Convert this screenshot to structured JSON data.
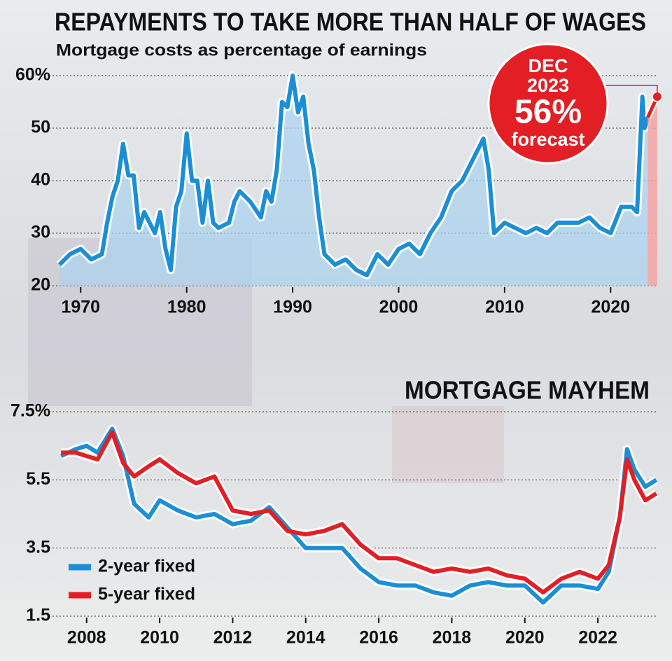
{
  "chart_data": [
    {
      "type": "line",
      "title": "REPAYMENTS TO TAKE MORE THAN HALF OF WAGES",
      "subtitle": "Mortgage costs as percentage of earnings",
      "x": [
        1968,
        1969,
        1970,
        1971,
        1972,
        1972.5,
        1973,
        1973.5,
        1974,
        1974.5,
        1975,
        1975.5,
        1976,
        1977,
        1977.5,
        1978,
        1978.5,
        1979,
        1979.5,
        1980,
        1980.5,
        1981,
        1981.5,
        1982,
        1982.5,
        1983,
        1984,
        1984.5,
        1985,
        1986,
        1987,
        1987.5,
        1988,
        1988.5,
        1989,
        1989.5,
        1990,
        1990.5,
        1991,
        1991.5,
        1992,
        1992.5,
        1993,
        1994,
        1995,
        1996,
        1997,
        1998,
        1999,
        2000,
        2001,
        2002,
        2003,
        2004,
        2005,
        2006,
        2007,
        2008,
        2008.5,
        2009,
        2010,
        2011,
        2012,
        2013,
        2014,
        2015,
        2016,
        2017,
        2018,
        2019,
        2020,
        2021,
        2022,
        2022.5,
        2023,
        2023.2,
        2023.5
      ],
      "series": [
        {
          "color": "#1b8fd6",
          "values": [
            24,
            26,
            27,
            25,
            26,
            32,
            37,
            40,
            47,
            41,
            41,
            31,
            34,
            30,
            34,
            27,
            23,
            35,
            38,
            49,
            40,
            40,
            32,
            40,
            32,
            31,
            32,
            36,
            38,
            36,
            33,
            38,
            36,
            42,
            55,
            54,
            60,
            53,
            56,
            47,
            42,
            33,
            26,
            24,
            25,
            23,
            22,
            26,
            24,
            27,
            28,
            26,
            30,
            33,
            38,
            40,
            44,
            48,
            42,
            30,
            32,
            31,
            30,
            31,
            30,
            32,
            32,
            32,
            33,
            31,
            30,
            35,
            35,
            34,
            56,
            50,
            52
          ]
        }
      ],
      "forecast": {
        "x": [
          2023.5,
          2024.4
        ],
        "values": [
          52,
          56
        ],
        "color": "#e31e24"
      },
      "annotation": [
        "DEC",
        "2023",
        "56%",
        "forecast"
      ],
      "xlim": [
        1968,
        2025
      ],
      "ylim": [
        20,
        60
      ],
      "xticks": [
        1970,
        1980,
        1990,
        2000,
        2010,
        2020
      ],
      "yticks": [
        {
          "value": 60,
          "label": "60%"
        },
        50,
        40,
        30,
        20
      ],
      "grid": true
    },
    {
      "type": "line",
      "title": "MORTGAGE MAYHEM",
      "x": [
        2007.3,
        2007.7,
        2008,
        2008.3,
        2008.7,
        2009,
        2009.3,
        2009.7,
        2010,
        2010.5,
        2011,
        2011.5,
        2012,
        2012.5,
        2013,
        2013.5,
        2014,
        2014.5,
        2015,
        2015.5,
        2016,
        2016.5,
        2017,
        2017.5,
        2018,
        2018.5,
        2019,
        2019.5,
        2020,
        2020.5,
        2021,
        2021.5,
        2022,
        2022.3,
        2022.6,
        2022.8,
        2023,
        2023.3,
        2023.6
      ],
      "series": [
        {
          "name": "2-year fixed",
          "color": "#1b8fd6",
          "values": [
            6.2,
            6.4,
            6.5,
            6.3,
            7.0,
            6.2,
            4.8,
            4.4,
            4.9,
            4.6,
            4.4,
            4.5,
            4.2,
            4.3,
            4.7,
            4.1,
            3.5,
            3.5,
            3.5,
            2.9,
            2.5,
            2.4,
            2.4,
            2.2,
            2.1,
            2.4,
            2.5,
            2.4,
            2.4,
            1.9,
            2.4,
            2.4,
            2.3,
            2.8,
            4.4,
            6.4,
            5.8,
            5.3,
            5.5
          ]
        },
        {
          "name": "5-year fixed",
          "color": "#e31e24",
          "values": [
            6.3,
            6.3,
            6.2,
            6.1,
            6.9,
            6.0,
            5.6,
            5.9,
            6.1,
            5.7,
            5.4,
            5.6,
            4.6,
            4.5,
            4.6,
            4.0,
            3.9,
            4.0,
            4.2,
            3.6,
            3.2,
            3.2,
            3.0,
            2.8,
            2.9,
            2.8,
            2.9,
            2.7,
            2.6,
            2.2,
            2.6,
            2.8,
            2.6,
            3.0,
            4.4,
            6.1,
            5.5,
            4.9,
            5.1
          ]
        }
      ],
      "xlim": [
        2007.2,
        2023.8
      ],
      "ylim": [
        1.5,
        7.5
      ],
      "xticks": [
        2008,
        2010,
        2012,
        2014,
        2016,
        2018,
        2020,
        2022
      ],
      "yticks": [
        {
          "value": 7.5,
          "label": "7.5%"
        },
        5.5,
        3.5,
        1.5
      ],
      "grid": true
    }
  ]
}
